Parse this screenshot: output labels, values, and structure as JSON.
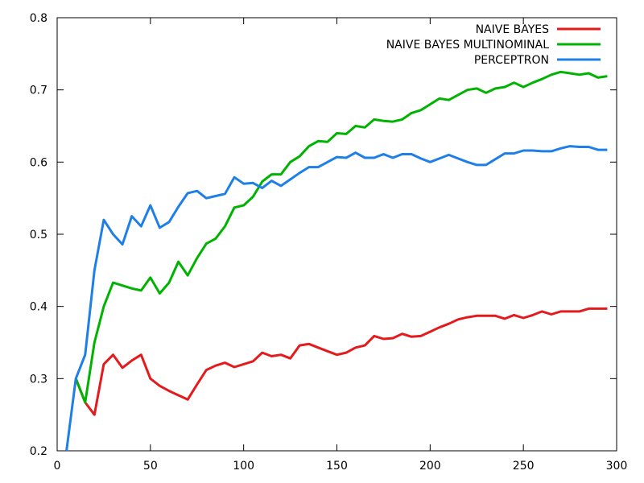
{
  "chart_data": {
    "type": "line",
    "title": "",
    "xlabel": "",
    "ylabel": "",
    "xlim": [
      0,
      300
    ],
    "ylim": [
      0.2,
      0.8
    ],
    "xticks": [
      0,
      50,
      100,
      150,
      200,
      250,
      300
    ],
    "yticks": [
      0.2,
      0.3,
      0.4,
      0.5,
      0.6,
      0.7,
      0.8
    ],
    "xtick_labels": [
      "0",
      "50",
      "100",
      "150",
      "200",
      "250",
      "300"
    ],
    "ytick_labels": [
      "0.2",
      "0.3",
      "0.4",
      "0.5",
      "0.6",
      "0.7",
      "0.8"
    ],
    "grid": false,
    "legend_position": "top-right",
    "series": [
      {
        "name": "NAIVE BAYES",
        "color": "#e41a1c",
        "x": [
          10,
          15,
          20,
          25,
          30,
          35,
          40,
          45,
          50,
          55,
          60,
          65,
          70,
          75,
          80,
          85,
          90,
          95,
          100,
          105,
          110,
          115,
          120,
          125,
          130,
          135,
          140,
          145,
          150,
          155,
          160,
          165,
          170,
          175,
          180,
          185,
          190,
          195,
          200,
          205,
          210,
          215,
          220,
          225,
          230,
          235,
          240,
          245,
          250,
          255,
          260,
          265,
          270,
          275,
          280,
          285,
          290,
          295
        ],
        "y": [
          0.3,
          0.267,
          0.25,
          0.32,
          0.333,
          0.315,
          0.325,
          0.333,
          0.3,
          0.29,
          0.283,
          0.277,
          0.271,
          0.292,
          0.312,
          0.318,
          0.322,
          0.316,
          0.32,
          0.324,
          0.336,
          0.331,
          0.333,
          0.328,
          0.346,
          0.348,
          0.343,
          0.338,
          0.333,
          0.336,
          0.343,
          0.346,
          0.359,
          0.355,
          0.356,
          0.362,
          0.358,
          0.359,
          0.365,
          0.371,
          0.376,
          0.382,
          0.385,
          0.387,
          0.387,
          0.387,
          0.383,
          0.388,
          0.384,
          0.388,
          0.393,
          0.389,
          0.393,
          0.393,
          0.393,
          0.397,
          0.397,
          0.397
        ]
      },
      {
        "name": "NAIVE BAYES MULTINOMINAL",
        "color": "#00b300",
        "x": [
          10,
          15,
          20,
          25,
          30,
          35,
          40,
          45,
          50,
          55,
          60,
          65,
          70,
          75,
          80,
          85,
          90,
          95,
          100,
          105,
          110,
          115,
          120,
          125,
          130,
          135,
          140,
          145,
          150,
          155,
          160,
          165,
          170,
          175,
          180,
          185,
          190,
          195,
          200,
          205,
          210,
          215,
          220,
          225,
          230,
          235,
          240,
          245,
          250,
          255,
          260,
          265,
          270,
          275,
          280,
          285,
          290,
          295
        ],
        "y": [
          0.3,
          0.267,
          0.35,
          0.4,
          0.433,
          0.429,
          0.425,
          0.422,
          0.44,
          0.418,
          0.433,
          0.462,
          0.443,
          0.467,
          0.487,
          0.494,
          0.511,
          0.537,
          0.54,
          0.552,
          0.573,
          0.583,
          0.583,
          0.6,
          0.608,
          0.622,
          0.629,
          0.628,
          0.64,
          0.639,
          0.65,
          0.648,
          0.659,
          0.657,
          0.656,
          0.659,
          0.668,
          0.672,
          0.68,
          0.688,
          0.686,
          0.693,
          0.7,
          0.702,
          0.696,
          0.702,
          0.704,
          0.71,
          0.704,
          0.71,
          0.715,
          0.721,
          0.725,
          0.723,
          0.721,
          0.723,
          0.717,
          0.719
        ]
      },
      {
        "name": "PERCEPTRON",
        "color": "#1e7fe6",
        "x": [
          5,
          10,
          15,
          20,
          25,
          30,
          35,
          40,
          45,
          50,
          55,
          60,
          65,
          70,
          75,
          80,
          85,
          90,
          95,
          100,
          105,
          110,
          115,
          120,
          125,
          130,
          135,
          140,
          145,
          150,
          155,
          160,
          165,
          170,
          175,
          180,
          185,
          190,
          195,
          200,
          205,
          210,
          215,
          220,
          225,
          230,
          235,
          240,
          245,
          250,
          255,
          260,
          265,
          270,
          275,
          280,
          285,
          290,
          295
        ],
        "y": [
          0.2,
          0.3,
          0.333,
          0.45,
          0.52,
          0.5,
          0.486,
          0.525,
          0.511,
          0.54,
          0.509,
          0.517,
          0.538,
          0.557,
          0.56,
          0.55,
          0.553,
          0.556,
          0.579,
          0.57,
          0.571,
          0.564,
          0.574,
          0.567,
          0.576,
          0.585,
          0.593,
          0.593,
          0.6,
          0.607,
          0.606,
          0.613,
          0.606,
          0.606,
          0.611,
          0.606,
          0.611,
          0.611,
          0.605,
          0.6,
          0.605,
          0.61,
          0.605,
          0.6,
          0.596,
          0.596,
          0.604,
          0.612,
          0.612,
          0.616,
          0.616,
          0.615,
          0.615,
          0.619,
          0.622,
          0.621,
          0.621,
          0.617,
          0.617
        ]
      }
    ]
  }
}
